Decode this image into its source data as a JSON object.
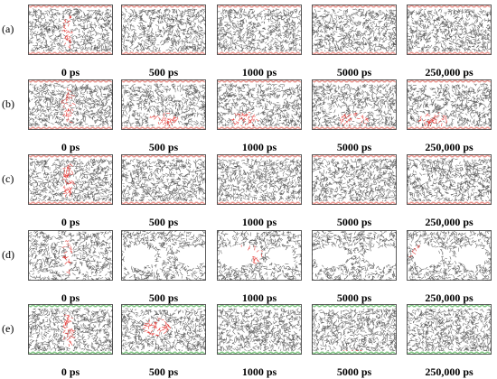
{
  "colors": {
    "molecule_gray": "#5c5c5c",
    "red_wall": "#e8877f",
    "green_wall": "#6fbf73",
    "highlight_red": "#e53935",
    "void_white": "#ffffff"
  },
  "rows": [
    {
      "label": "(a)",
      "wall": "red",
      "panels": [
        {
          "time": "0 ps",
          "highlight": "center-column",
          "voids": "few"
        },
        {
          "time": "500 ps",
          "highlight": "none",
          "voids": "few"
        },
        {
          "time": "1000 ps",
          "highlight": "top-edge",
          "voids": "few"
        },
        {
          "time": "5000 ps",
          "highlight": "none",
          "voids": "few"
        },
        {
          "time": "250,000 ps",
          "highlight": "none",
          "voids": "few"
        }
      ]
    },
    {
      "label": "(b)",
      "wall": "red",
      "panels": [
        {
          "time": "0 ps",
          "highlight": "center-column",
          "voids": "few"
        },
        {
          "time": "500 ps",
          "highlight": "bottom-cluster",
          "voids": "some"
        },
        {
          "time": "1000 ps",
          "highlight": "bottom-left-cluster",
          "voids": "some"
        },
        {
          "time": "5000 ps",
          "highlight": "bottom-cluster",
          "voids": "some"
        },
        {
          "time": "250,000 ps",
          "highlight": "bottom-left-cluster",
          "voids": "some"
        }
      ]
    },
    {
      "label": "(c)",
      "wall": "red",
      "panels": [
        {
          "time": "0 ps",
          "highlight": "center-column",
          "voids": "few"
        },
        {
          "time": "500 ps",
          "highlight": "none",
          "voids": "few"
        },
        {
          "time": "1000 ps",
          "highlight": "none",
          "voids": "few"
        },
        {
          "time": "5000 ps",
          "highlight": "none",
          "voids": "few"
        },
        {
          "time": "250,000 ps",
          "highlight": "none",
          "voids": "few"
        }
      ]
    },
    {
      "label": "(d)",
      "wall": "none",
      "panels": [
        {
          "time": "0 ps",
          "highlight": "center-column",
          "voids": "some"
        },
        {
          "time": "500 ps",
          "highlight": "none",
          "voids": "large"
        },
        {
          "time": "1000 ps",
          "highlight": "center-scatter",
          "voids": "large"
        },
        {
          "time": "5000 ps",
          "highlight": "right-center",
          "voids": "large"
        },
        {
          "time": "250,000 ps",
          "highlight": "left-cluster",
          "voids": "large"
        }
      ]
    },
    {
      "label": "(e)",
      "wall": "green",
      "panels": [
        {
          "time": "0 ps",
          "highlight": "center-column",
          "voids": "few"
        },
        {
          "time": "500 ps",
          "highlight": "center-cluster",
          "voids": "some"
        },
        {
          "time": "1000 ps",
          "highlight": "none",
          "voids": "few"
        },
        {
          "time": "5000 ps",
          "highlight": "bottom-edge",
          "voids": "few"
        },
        {
          "time": "250,000 ps",
          "highlight": "none",
          "voids": "few"
        }
      ]
    }
  ]
}
